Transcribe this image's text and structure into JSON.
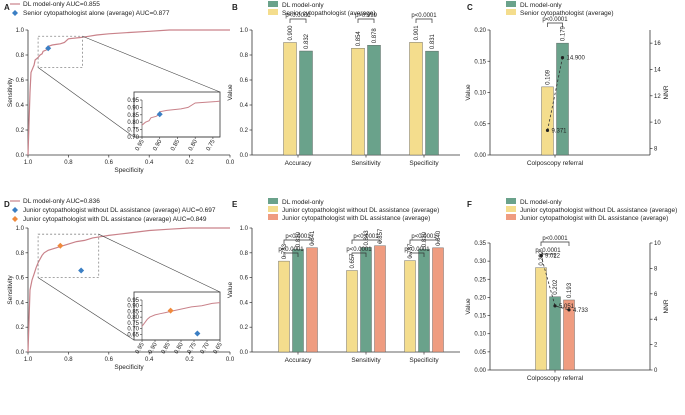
{
  "colors": {
    "dl": "#6aa28b",
    "senior": "#f4dd8d",
    "junior_without": "#f4dd8d",
    "junior_with": "#ef9c80",
    "roc_line": "#c9828a",
    "senior_marker": "#3b7fc4",
    "junior_without_marker": "#3b7fc4",
    "junior_with_marker": "#f08a3c",
    "axis": "#333333"
  },
  "chart_data": [
    {
      "panel": "A",
      "type": "line",
      "title": "",
      "xlabel": "Specificity",
      "ylabel": "Sensitivity",
      "xlim": [
        1.0,
        0.0
      ],
      "ylim": [
        0.0,
        1.0
      ],
      "xticks": [
        "1.0",
        "0.8",
        "0.6",
        "0.4",
        "0.2",
        "0.0"
      ],
      "yticks": [
        "0.0",
        "0.2",
        "0.4",
        "0.6",
        "0.8",
        "1.0"
      ],
      "legend": [
        "DL model-only AUC=0.855",
        "Senior cytopathologist alone (average) AUC=0.877"
      ],
      "roc_curve": {
        "name": "DL model-only",
        "x": [
          1.0,
          0.99,
          0.985,
          0.97,
          0.965,
          0.95,
          0.94,
          0.93,
          0.925,
          0.91,
          0.9,
          0.9,
          0.88,
          0.86,
          0.84,
          0.82,
          0.8,
          0.74,
          0.7,
          0.66,
          0.6,
          0.5,
          0.4,
          0.3,
          0.2,
          0.1,
          0.0
        ],
        "y": [
          0.0,
          0.5,
          0.66,
          0.72,
          0.76,
          0.78,
          0.8,
          0.81,
          0.83,
          0.84,
          0.855,
          0.87,
          0.88,
          0.885,
          0.89,
          0.9,
          0.93,
          0.94,
          0.95,
          0.96,
          0.97,
          0.98,
          0.99,
          1.0,
          1.0,
          1.0,
          1.0
        ]
      },
      "points": [
        {
          "name": "Senior cytopathologist alone (average)",
          "x": 0.9,
          "y": 0.854
        }
      ],
      "inset": {
        "xlim": [
          0.95,
          0.73
        ],
        "ylim": [
          0.7,
          0.95
        ],
        "xticks": [
          "0.95",
          "0.90",
          "0.85",
          "0.80",
          "0.75"
        ],
        "yticks": [
          "0.70",
          "0.75",
          "0.80",
          "0.85",
          "0.90",
          "0.95"
        ],
        "zoom_box": {
          "x": [
            0.95,
            0.73
          ],
          "y": [
            0.7,
            0.95
          ]
        }
      }
    },
    {
      "panel": "B",
      "type": "bar",
      "ylabel": "Value",
      "ylim": [
        0.0,
        1.0
      ],
      "yticks": [
        "0.0",
        "0.2",
        "0.4",
        "0.6",
        "0.8",
        "1.0"
      ],
      "categories": [
        "Accuracy",
        "Sensitivity",
        "Specificity"
      ],
      "legend": [
        "DL model-only",
        "Senior cytopathologist (average)"
      ],
      "series": [
        {
          "name": "Senior cytopathologist (average)",
          "values": [
            0.9,
            0.854,
            0.901
          ],
          "labels": [
            "0.900",
            "0.854",
            "0.901"
          ]
        },
        {
          "name": "DL model-only",
          "values": [
            0.832,
            0.878,
            0.831
          ],
          "labels": [
            "0.832",
            "0.878",
            "0.831"
          ]
        }
      ],
      "pvalues": [
        "p<0.0001",
        "p>0.999",
        "p<0.0001"
      ]
    },
    {
      "panel": "C",
      "type": "bar",
      "ylabel": "Value",
      "y2label": "NNR",
      "ylim": [
        0.0,
        0.2
      ],
      "yticks": [
        "0.00",
        "0.05",
        "0.10",
        "0.15",
        "0.20"
      ],
      "y2lim": [
        7.5,
        17.0
      ],
      "y2ticks": [
        "8",
        "10",
        "12",
        "14",
        "16"
      ],
      "categories": [
        "Colposcopy referral"
      ],
      "legend": [
        "DL model-only",
        "Senior cytopathologist (average)"
      ],
      "series": [
        {
          "name": "Senior cytopathologist (average)",
          "values": [
            0.109
          ],
          "labels": [
            "0.109"
          ]
        },
        {
          "name": "DL model-only",
          "values": [
            0.179
          ],
          "labels": [
            "0.179"
          ]
        }
      ],
      "nnr": [
        9.371,
        14.9
      ],
      "nnr_labels": [
        "9.371",
        "14.900"
      ],
      "pvalues": [
        "p<0.0001"
      ]
    },
    {
      "panel": "D",
      "type": "line",
      "xlabel": "Specificity",
      "ylabel": "Sensitivity",
      "xlim": [
        1.0,
        0.0
      ],
      "ylim": [
        0.0,
        1.0
      ],
      "xticks": [
        "1.0",
        "0.8",
        "0.6",
        "0.4",
        "0.2",
        "0.0"
      ],
      "yticks": [
        "0.0",
        "0.2",
        "0.4",
        "0.6",
        "0.8",
        "1.0"
      ],
      "legend": [
        "DL model-only AUC=0.836",
        "Junior cytopathologist without DL assistance (average) AUC=0.697",
        "Junior cytopathologist with DL assistance (average) AUC=0.849"
      ],
      "roc_curve": {
        "name": "DL model-only",
        "x": [
          1.0,
          0.99,
          0.98,
          0.97,
          0.96,
          0.95,
          0.94,
          0.93,
          0.92,
          0.9,
          0.88,
          0.86,
          0.84,
          0.8,
          0.76,
          0.72,
          0.68,
          0.64,
          0.6,
          0.55,
          0.5,
          0.4,
          0.3,
          0.2,
          0.1,
          0.0
        ],
        "y": [
          0.0,
          0.5,
          0.58,
          0.63,
          0.68,
          0.72,
          0.75,
          0.78,
          0.8,
          0.82,
          0.83,
          0.84,
          0.85,
          0.87,
          0.89,
          0.9,
          0.92,
          0.93,
          0.94,
          0.95,
          0.96,
          0.98,
          0.99,
          1.0,
          1.0,
          1.0
        ]
      },
      "points": [
        {
          "name": "Junior cytopathologist without DL assistance (average)",
          "x": 0.737,
          "y": 0.657
        },
        {
          "name": "Junior cytopathologist with DL assistance (average)",
          "x": 0.84,
          "y": 0.857
        }
      ],
      "inset": {
        "xlim": [
          0.95,
          0.65
        ],
        "ylim": [
          0.6,
          0.95
        ],
        "xticks": [
          "0.95",
          "0.90",
          "0.85",
          "0.80",
          "0.75",
          "0.70",
          "0.65"
        ],
        "yticks": [
          "0.65",
          "0.70",
          "0.75",
          "0.80",
          "0.85",
          "0.90",
          "0.95"
        ],
        "zoom_box": {
          "x": [
            0.95,
            0.65
          ],
          "y": [
            0.6,
            0.95
          ]
        }
      }
    },
    {
      "panel": "E",
      "type": "bar",
      "ylabel": "Value",
      "ylim": [
        0.0,
        1.0
      ],
      "yticks": [
        "0.0",
        "0.2",
        "0.4",
        "0.6",
        "0.8",
        "1.0"
      ],
      "categories": [
        "Accuracy",
        "Sensitivity",
        "Specificity"
      ],
      "legend": [
        "DL model-only",
        "Junior cytopathologist without DL assistance (average)",
        "Junior cytopathologist with DL assistance (average)"
      ],
      "series": [
        {
          "name": "Junior cytopathologist without DL assistance (average)",
          "values": [
            0.733,
            0.657,
            0.737
          ],
          "labels": [
            "0.733",
            "0.657",
            "0.737"
          ]
        },
        {
          "name": "DL model-only",
          "values": [
            0.83,
            0.843,
            0.83
          ],
          "labels": [
            "0.830",
            "0.843",
            "0.830"
          ]
        },
        {
          "name": "Junior cytopathologist with DL assistance (average)",
          "values": [
            0.841,
            0.857,
            0.84
          ],
          "labels": [
            "0.841",
            "0.857",
            "0.840"
          ]
        }
      ],
      "pvalues": [
        "p<0.0001",
        "p<0.0001",
        "p<0.0001",
        "p<0.0001",
        "p<0.0001",
        "p<0.0001"
      ]
    },
    {
      "panel": "F",
      "type": "bar",
      "ylabel": "Value",
      "y2label": "NNR",
      "ylim": [
        0.0,
        0.35
      ],
      "yticks": [
        "0.00",
        "0.05",
        "0.10",
        "0.15",
        "0.20",
        "0.25",
        "0.30",
        "0.35"
      ],
      "y2lim": [
        0,
        10
      ],
      "y2ticks": [
        "0",
        "2",
        "4",
        "6",
        "8",
        "10"
      ],
      "categories": [
        "Colposcopy referral"
      ],
      "legend": [
        "DL model-only",
        "Junior cytopathologist without DL assistance (average)",
        "Junior cytopathologist  with DL assistance (average)"
      ],
      "series": [
        {
          "name": "Junior cytopathologist without DL assistance (average)",
          "values": [
            0.282
          ],
          "labels": [
            "0.282"
          ]
        },
        {
          "name": "DL model-only",
          "values": [
            0.202
          ],
          "labels": [
            "0.202"
          ]
        },
        {
          "name": "Junior cytopathologist with DL assistance (average)",
          "values": [
            0.193
          ],
          "labels": [
            "0.193"
          ]
        }
      ],
      "nnr": [
        9.022,
        5.051,
        4.733
      ],
      "nnr_labels": [
        "9.022",
        "5.051",
        "4.733"
      ],
      "pvalues": [
        "p<0.0001",
        "p<0.0001"
      ]
    }
  ],
  "panel_letters": [
    "A",
    "B",
    "C",
    "D",
    "E",
    "F"
  ]
}
